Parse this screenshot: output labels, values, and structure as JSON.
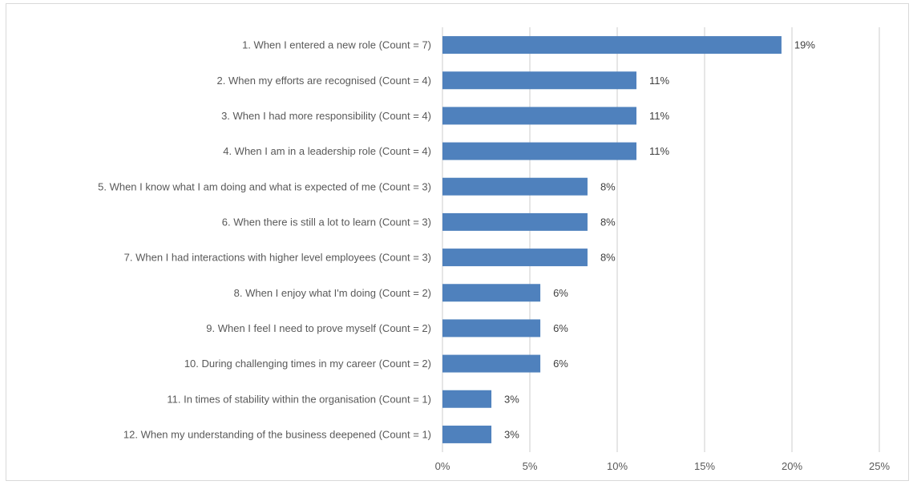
{
  "chart_data": {
    "type": "bar",
    "orientation": "horizontal",
    "title": "",
    "xlabel": "",
    "ylabel": "",
    "categories": [
      "1. When I entered a new role (Count = 7)",
      "2. When my efforts are recognised (Count = 4)",
      "3. When I had more responsibility (Count = 4)",
      "4. When I am in a leadership role (Count = 4)",
      "5. When I know what I am doing and what is expected of me (Count = 3)",
      "6. When there is still a lot to learn (Count = 3)",
      "7. When I had interactions with higher level employees (Count = 3)",
      "8. When I enjoy what I'm doing (Count = 2)",
      "9. When I feel I need to prove myself (Count = 2)",
      "10. During challenging times in my career (Count = 2)",
      "11. In times of stability within the organisation (Count = 1)",
      "12. When my understanding of the business deepened (Count = 1)"
    ],
    "values": [
      19.4,
      11.1,
      11.1,
      11.1,
      8.3,
      8.3,
      8.3,
      5.6,
      5.6,
      5.6,
      2.8,
      2.8
    ],
    "data_labels": [
      "19%",
      "11%",
      "11%",
      "11%",
      "8%",
      "8%",
      "8%",
      "6%",
      "6%",
      "6%",
      "3%",
      "3%"
    ],
    "xlim": [
      0,
      25
    ],
    "x_ticks": [
      0,
      5,
      10,
      15,
      20,
      25
    ],
    "x_tick_labels": [
      "0%",
      "5%",
      "10%",
      "15%",
      "20%",
      "25%"
    ],
    "bar_color": "#4f81bd",
    "grid": true,
    "legend": "none"
  }
}
